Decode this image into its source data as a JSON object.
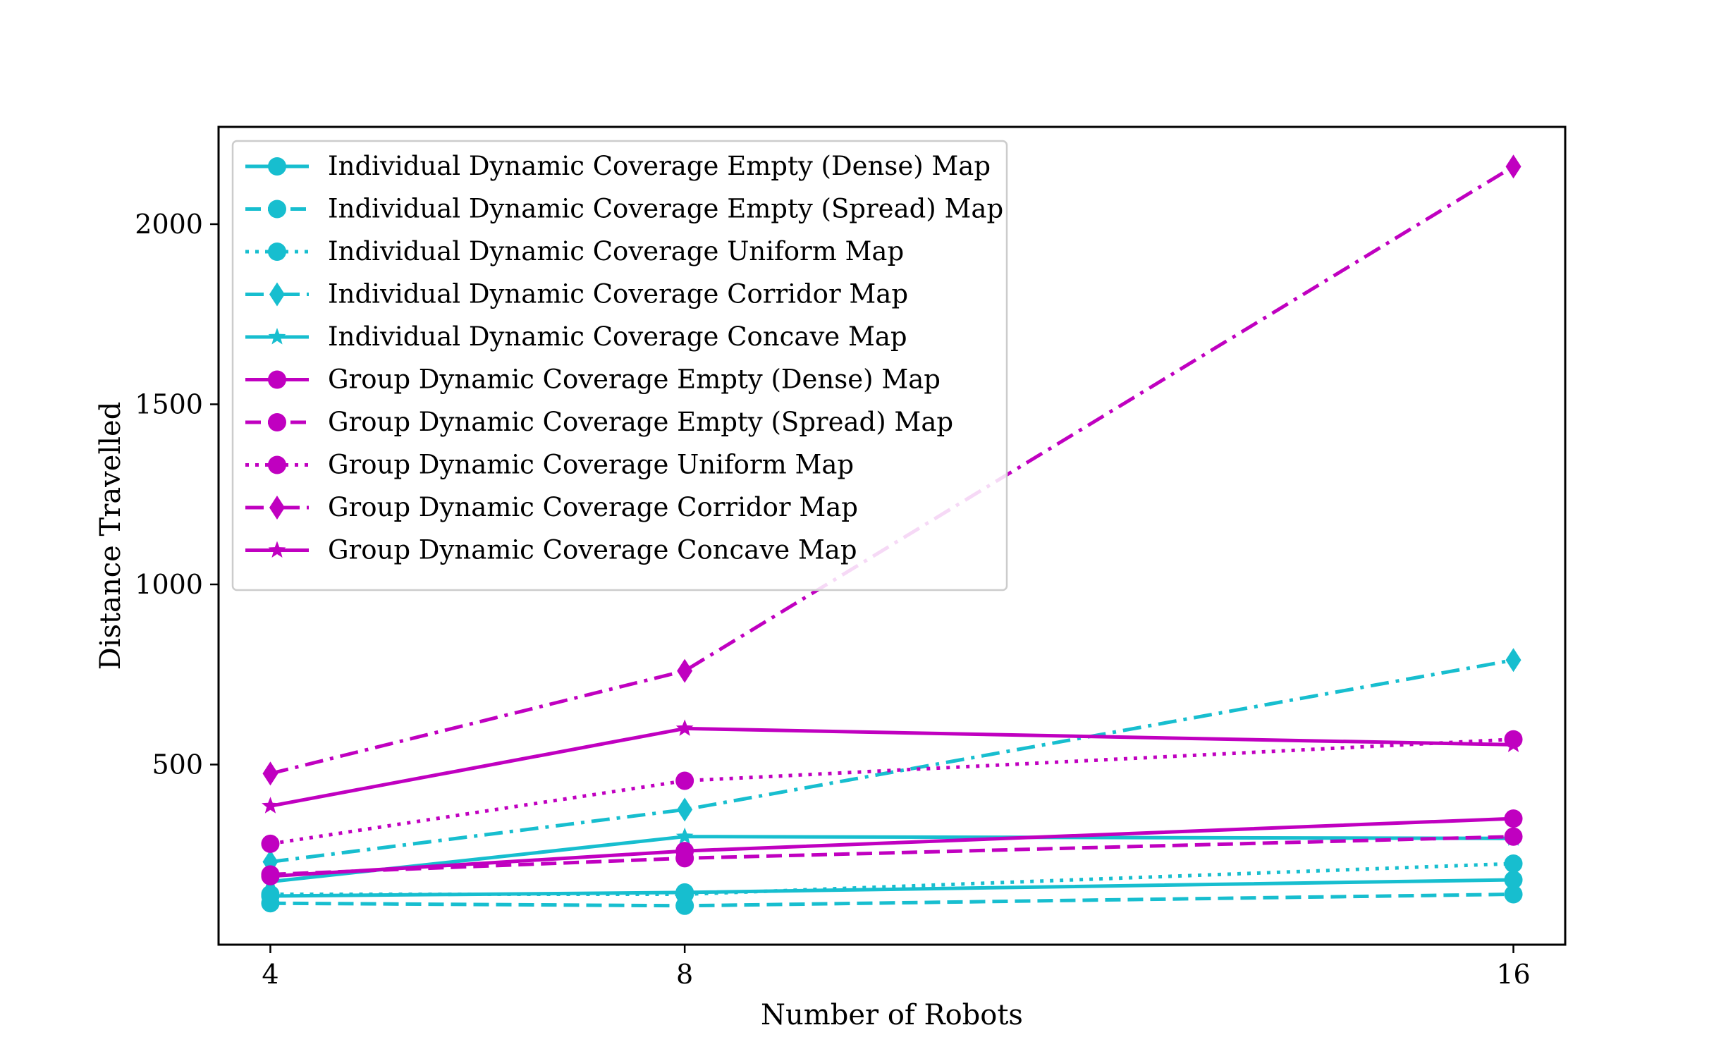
{
  "chart_data": {
    "type": "line",
    "title": "",
    "xlabel": "Number of Robots",
    "ylabel": "Distance Travelled",
    "x": [
      4,
      8,
      16
    ],
    "x_ticks": [
      "4",
      "8",
      "16"
    ],
    "xlim": [
      3.5,
      16.5
    ],
    "ylim": [
      0,
      2270
    ],
    "y_ticks": [
      500,
      1000,
      1500,
      2000
    ],
    "y_tick_labels": [
      "500",
      "1000",
      "1500",
      "2000"
    ],
    "grid": false,
    "legend_position": "upper-left",
    "colors": {
      "individual": "#17becf",
      "group": "#c000c0"
    },
    "series": [
      {
        "name": "Individual Dynamic Coverage Empty (Dense) Map",
        "color": "#17becf",
        "linestyle": "solid",
        "marker": "circle",
        "values": [
          135,
          145,
          180
        ]
      },
      {
        "name": "Individual Dynamic Coverage Empty (Spread) Map",
        "color": "#17becf",
        "linestyle": "dashed",
        "marker": "circle",
        "values": [
          115,
          108,
          140
        ]
      },
      {
        "name": "Individual Dynamic Coverage Uniform Map",
        "color": "#17becf",
        "linestyle": "dotted",
        "marker": "circle",
        "values": [
          140,
          140,
          225
        ]
      },
      {
        "name": "Individual Dynamic Coverage Corridor Map",
        "color": "#17becf",
        "linestyle": "dashdot",
        "marker": "diamond",
        "values": [
          230,
          375,
          790
        ]
      },
      {
        "name": "Individual Dynamic Coverage Concave Map",
        "color": "#17becf",
        "linestyle": "solid",
        "marker": "star",
        "values": [
          175,
          300,
          295
        ]
      },
      {
        "name": "Group Dynamic Coverage Empty (Dense) Map",
        "color": "#c000c0",
        "linestyle": "solid",
        "marker": "circle",
        "values": [
          190,
          260,
          350
        ]
      },
      {
        "name": "Group Dynamic Coverage Empty (Spread) Map",
        "color": "#c000c0",
        "linestyle": "dashed",
        "marker": "circle",
        "values": [
          195,
          240,
          300
        ]
      },
      {
        "name": "Group Dynamic Coverage Uniform Map",
        "color": "#c000c0",
        "linestyle": "dotted",
        "marker": "circle",
        "values": [
          280,
          455,
          570
        ]
      },
      {
        "name": "Group Dynamic Coverage Corridor Map",
        "color": "#c000c0",
        "linestyle": "dashdot",
        "marker": "diamond",
        "values": [
          475,
          760,
          2160
        ]
      },
      {
        "name": "Group Dynamic Coverage Concave Map",
        "color": "#c000c0",
        "linestyle": "solid",
        "marker": "star",
        "values": [
          385,
          600,
          555
        ]
      }
    ]
  }
}
